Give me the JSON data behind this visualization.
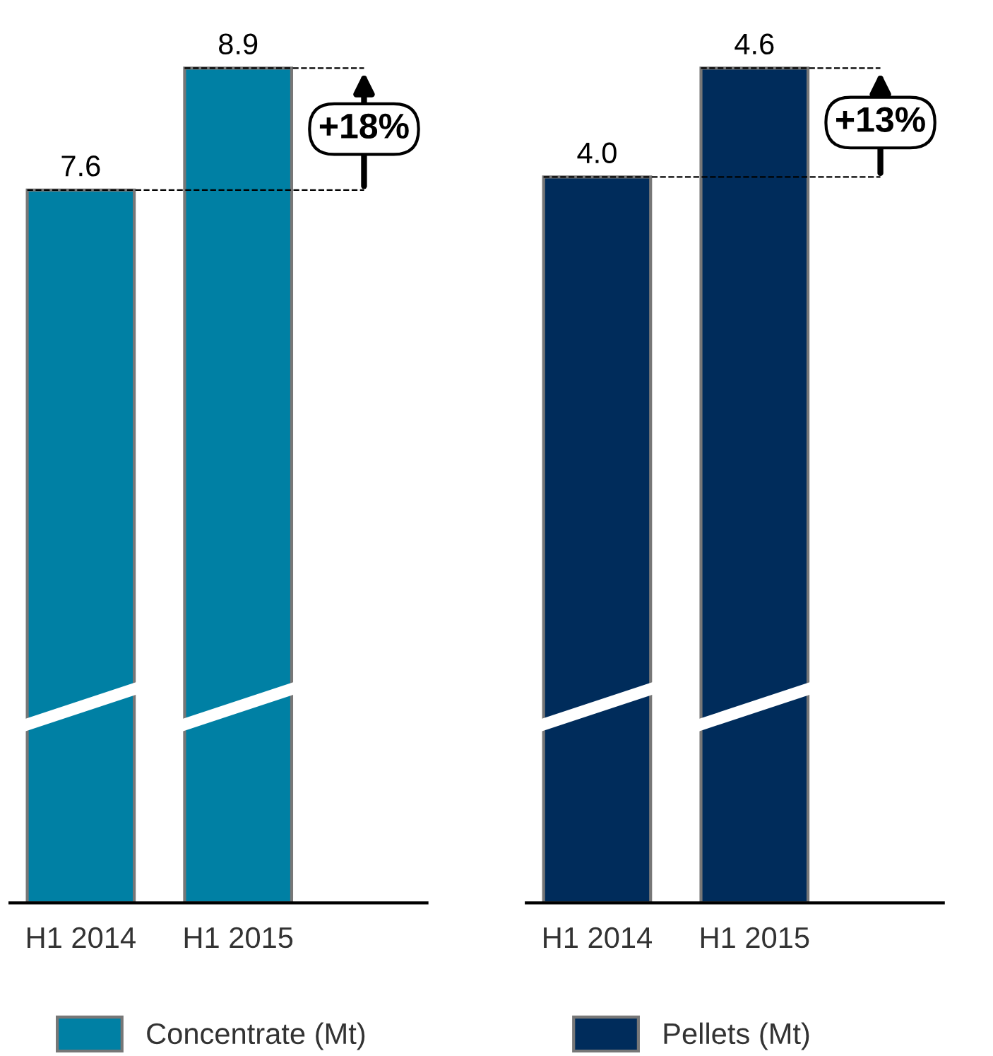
{
  "chart_data": [
    {
      "type": "bar",
      "categories": [
        "H1 2014",
        "H1 2015"
      ],
      "series": [
        {
          "name": "Concentrate (Mt)",
          "color": "#0080a4",
          "values": [
            7.6,
            8.9
          ],
          "value_labels": [
            "7.6",
            "8.9"
          ]
        }
      ],
      "legend": "bottom",
      "tick_labels": "x",
      "annotations": [
        "+18%"
      ],
      "ref_lines": [
        {
          "axis": "y",
          "value": 7.6,
          "line_style": "dashed",
          "color": "#000000"
        },
        {
          "axis": "y",
          "value": 8.9,
          "line_style": "dashed",
          "color": "#000000"
        }
      ]
    },
    {
      "type": "bar",
      "categories": [
        "H1 2014",
        "H1 2015"
      ],
      "series": [
        {
          "name": "Pellets (Mt)",
          "color": "#002c5b",
          "values": [
            4.0,
            4.6
          ],
          "value_labels": [
            "4.0",
            "4.6"
          ]
        }
      ],
      "legend": "bottom",
      "tick_labels": "x",
      "annotations": [
        "+13%"
      ],
      "ref_lines": [
        {
          "axis": "y",
          "value": 4.0,
          "line_style": "dashed",
          "color": "#000000"
        },
        {
          "axis": "y",
          "value": 4.6,
          "line_style": "dashed",
          "color": "#000000"
        }
      ]
    }
  ]
}
